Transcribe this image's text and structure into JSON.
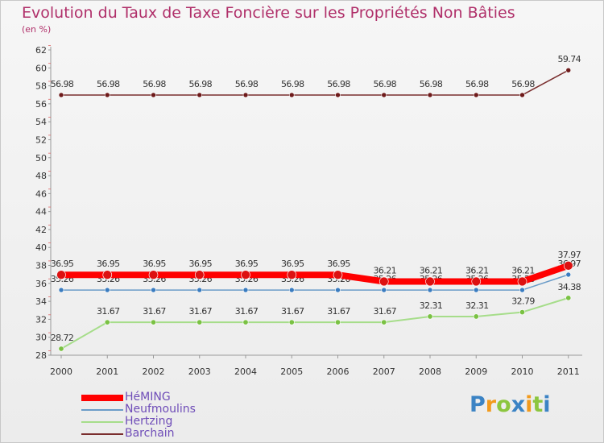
{
  "title": "Evolution du Taux de Taxe Foncière sur les Propriétés Non Bâties",
  "subtitle": "(en %)",
  "logo": "Proxiti",
  "chart_data": {
    "type": "line",
    "title": "Evolution du Taux de Taxe Foncière sur les Propriétés Non Bâties",
    "ylabel": "(en %)",
    "xlabel": "",
    "categories": [
      "2000",
      "2001",
      "2002",
      "2003",
      "2004",
      "2005",
      "2006",
      "2007",
      "2008",
      "2009",
      "2010",
      "2011"
    ],
    "ylim": [
      28,
      62
    ],
    "yticks": [
      28,
      30,
      32,
      34,
      36,
      38,
      40,
      42,
      44,
      46,
      48,
      50,
      52,
      54,
      56,
      58,
      60,
      62
    ],
    "grid": false,
    "legend_position": "bottom-left",
    "series": [
      {
        "name": "Barchain",
        "color": "#7a2e2e",
        "marker": "#6e1a1a",
        "values": [
          56.98,
          56.98,
          56.98,
          56.98,
          56.98,
          56.98,
          56.98,
          56.98,
          56.98,
          56.98,
          56.98,
          59.74
        ],
        "labels": [
          "56.98",
          "56.98",
          "56.98",
          "56.98",
          "56.98",
          "56.98",
          "56.98",
          "56.98",
          "56.98",
          "56.98",
          "56.98",
          "59.74"
        ]
      },
      {
        "name": "Hertzing",
        "color": "#a6dd8a",
        "marker": "#7ac143",
        "values": [
          28.72,
          31.67,
          31.67,
          31.67,
          31.67,
          31.67,
          31.67,
          31.67,
          32.31,
          32.31,
          32.79,
          34.38
        ],
        "labels": [
          "28.72",
          "31.67",
          "31.67",
          "31.67",
          "31.67",
          "31.67",
          "31.67",
          "31.67",
          "32.31",
          "32.31",
          "32.79",
          "34.38"
        ]
      },
      {
        "name": "Neufmoulins",
        "color": "#6a9cc8",
        "marker": "#3a7cc0",
        "values": [
          35.26,
          35.26,
          35.26,
          35.26,
          35.26,
          35.26,
          35.26,
          35.26,
          35.26,
          35.26,
          35.26,
          36.97
        ],
        "labels": [
          "35.26",
          "35.26",
          "35.26",
          "35.26",
          "35.26",
          "35.26",
          "35.26",
          "35.26",
          "35.26",
          "35.26",
          "35.26",
          "36.97"
        ]
      },
      {
        "name": "HéMING",
        "color": "#ff0000",
        "marker": "#dd1111",
        "values": [
          36.95,
          36.95,
          36.95,
          36.95,
          36.95,
          36.95,
          36.95,
          36.21,
          36.21,
          36.21,
          36.21,
          37.97
        ],
        "labels": [
          "36.95",
          "36.95",
          "36.95",
          "36.95",
          "36.95",
          "36.95",
          "36.95",
          "36.21",
          "36.21",
          "36.21",
          "36.21",
          "37.97"
        ]
      }
    ],
    "legend": [
      "HéMING",
      "Neufmoulins",
      "Hertzing",
      "Barchain"
    ]
  }
}
